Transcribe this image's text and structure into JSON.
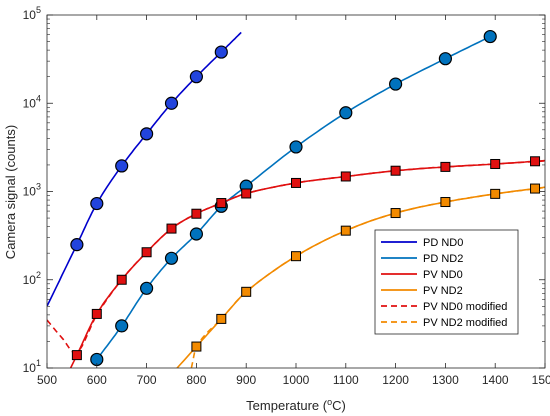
{
  "chart_data": {
    "type": "scatter",
    "xlabel": "Temperature (",
    "xlabel_sup": "o",
    "xlabel_tail": "C)",
    "ylabel": "Camera signal (counts)",
    "xlim": [
      500,
      1500
    ],
    "ylim": [
      10,
      100000
    ],
    "yscale": "log",
    "grid": false,
    "legend_position": "bottom-right",
    "x_ticks": [
      "500",
      "600",
      "700",
      "800",
      "900",
      "1000",
      "1100",
      "1200",
      "1300",
      "1400",
      "1500"
    ],
    "y_tick_bases": [
      "10",
      "10",
      "10",
      "10",
      "10"
    ],
    "y_tick_exponents": [
      "1",
      "2",
      "3",
      "4",
      "5"
    ],
    "series": [
      {
        "name": "PD ND0",
        "color": "#0000CC",
        "style": "solid",
        "marker": "circle",
        "marker_color": "#2244DD",
        "x": [
          560,
          600,
          650,
          700,
          750,
          800,
          850
        ],
        "y": [
          250,
          730,
          1950,
          4500,
          10000,
          20000,
          38000
        ]
      },
      {
        "name": "PD ND2",
        "color": "#0072BD",
        "style": "solid",
        "marker": "circle",
        "marker_color": "#0072BD",
        "x": [
          600,
          650,
          700,
          750,
          800,
          850,
          900,
          1000,
          1100,
          1200,
          1300,
          1390
        ],
        "y": [
          12.5,
          30,
          80,
          175,
          330,
          680,
          1150,
          3200,
          7800,
          16500,
          32000,
          57000
        ]
      },
      {
        "name": "PV ND0",
        "color": "#E01010",
        "style": "solid",
        "marker": "square",
        "marker_color": "#E01010",
        "x": [
          560,
          600,
          650,
          700,
          750,
          800,
          850,
          900,
          1000,
          1100,
          1200,
          1300,
          1400,
          1480
        ],
        "y": [
          14,
          41,
          100,
          205,
          380,
          560,
          740,
          950,
          1250,
          1480,
          1720,
          1900,
          2050,
          2200
        ]
      },
      {
        "name": "PV ND2",
        "color": "#F28A00",
        "style": "solid",
        "marker": "square",
        "marker_color": "#F28A00",
        "x": [
          800,
          850,
          900,
          1000,
          1100,
          1200,
          1300,
          1400,
          1480
        ],
        "y": [
          17.5,
          36,
          73,
          185,
          360,
          570,
          760,
          940,
          1080
        ]
      },
      {
        "name": "PV ND0 modified",
        "color": "#E01010",
        "style": "dashed",
        "marker": "none"
      },
      {
        "name": "PV ND2 modified",
        "color": "#F28A00",
        "style": "dashed",
        "marker": "none"
      }
    ]
  }
}
